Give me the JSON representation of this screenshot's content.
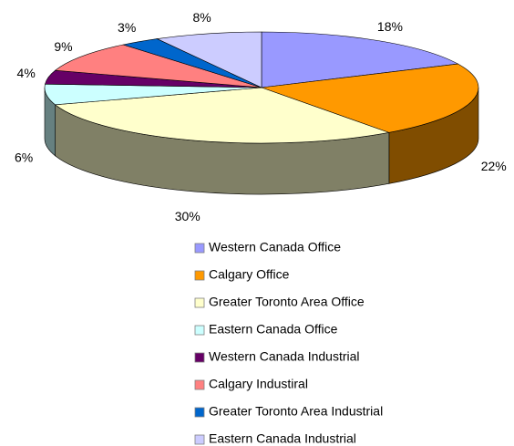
{
  "chart_data": {
    "type": "pie3d",
    "categories": [
      "Western Canada Office",
      "Calgary Office",
      "Greater Toronto Area Office",
      "Eastern Canada Office",
      "Western Canada Industrial",
      "Calgary Industiral",
      "Greater Toronto Area Industrial",
      "Eastern Canada Industrial"
    ],
    "values": [
      18,
      22,
      30,
      6,
      4,
      9,
      3,
      8
    ],
    "value_labels": [
      "18%",
      "22%",
      "30%",
      "6%",
      "4%",
      "9%",
      "3%",
      "8%"
    ],
    "colors": [
      "#9999ff",
      "#ff9900",
      "#ffffcc",
      "#ccffff",
      "#660066",
      "#ff8080",
      "#0066cc",
      "#ccccff"
    ]
  }
}
